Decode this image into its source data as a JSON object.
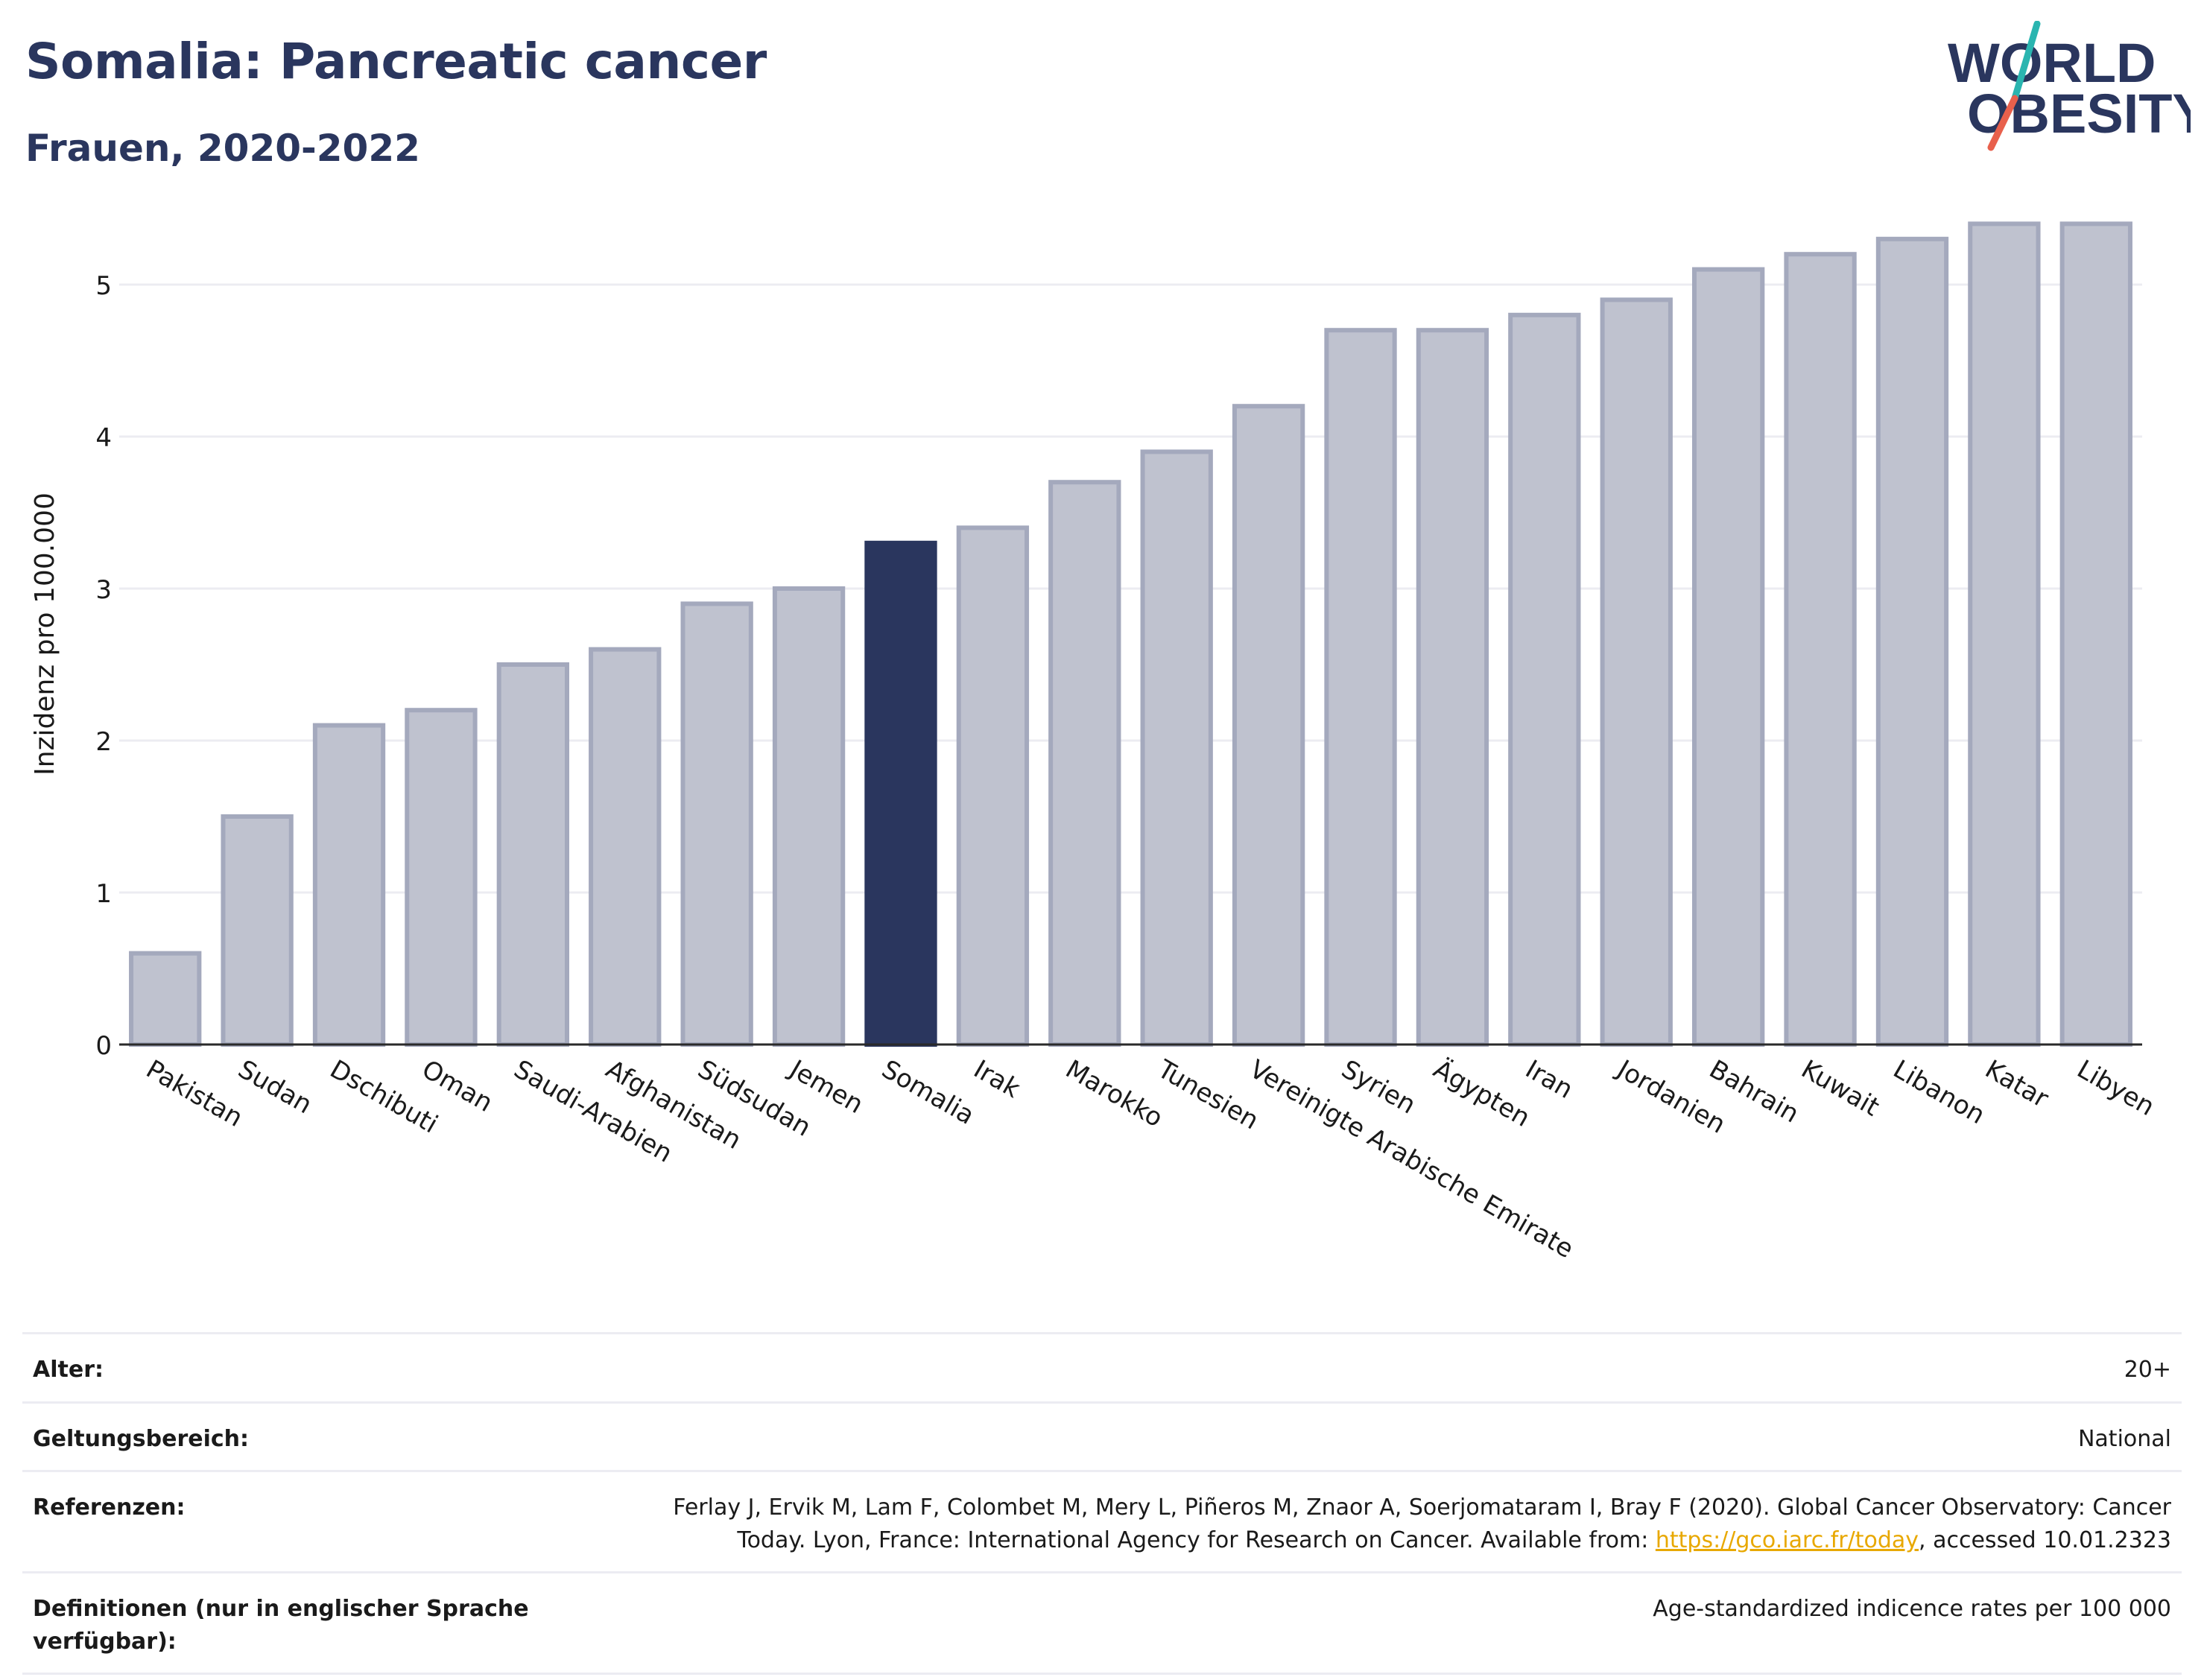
{
  "header": {
    "title": "Somalia: Pancreatic cancer",
    "subtitle": "Frauen, 2020-2022"
  },
  "logo": {
    "line1": "WORLD",
    "line2": "OBESITY"
  },
  "colors": {
    "highlight": "#2a365e",
    "bar_fill": "#bfc2cf",
    "bar_stroke": "#a4a9bd",
    "grid": "#ececf2",
    "text": "#2a365e",
    "logo_teal": "#2ab5b0",
    "logo_red": "#e8604c"
  },
  "chart_data": {
    "type": "bar",
    "title": "Somalia: Pancreatic cancer",
    "subtitle": "Frauen, 2020-2022",
    "ylabel": "Inzidenz pro 100.000",
    "ylim": [
      0,
      5.5
    ],
    "yticks": [
      0,
      1,
      2,
      3,
      4,
      5
    ],
    "grid": true,
    "highlight": "Somalia",
    "categories": [
      "Pakistan",
      "Sudan",
      "Dschibuti",
      "Oman",
      "Saudi-Arabien",
      "Afghanistan",
      "Südsudan",
      "Jemen",
      "Somalia",
      "Irak",
      "Marokko",
      "Tunesien",
      "Vereinigte Arabische Emirate",
      "Syrien",
      "Ägypten",
      "Iran",
      "Jordanien",
      "Bahrain",
      "Kuwait",
      "Libanon",
      "Katar",
      "Libyen"
    ],
    "values": [
      0.6,
      1.5,
      2.1,
      2.2,
      2.5,
      2.6,
      2.9,
      3.0,
      3.3,
      3.4,
      3.7,
      3.9,
      4.2,
      4.7,
      4.7,
      4.8,
      4.9,
      5.1,
      5.2,
      5.3,
      5.4,
      5.4
    ]
  },
  "meta": {
    "age_label": "Alter:",
    "age_value": "20+",
    "scope_label": "Geltungsbereich:",
    "scope_value": "National",
    "ref_label": "Referenzen:",
    "ref_text_1": "Ferlay J, Ervik M, Lam F, Colombet M, Mery L, Piñeros M, Znaor A, Soerjomataram I, Bray F (2020). Global Cancer Observatory: Cancer",
    "ref_text_2": "Today. Lyon, France: International Agency for Research on Cancer. Available from: ",
    "ref_link": "https://gco.iarc.fr/today",
    "ref_text_3": ", accessed 10.01.2323",
    "def_label": "Definitionen (nur in englischer Sprache verfügbar):",
    "def_value": "Age-standardized indicence rates per 100 000"
  }
}
